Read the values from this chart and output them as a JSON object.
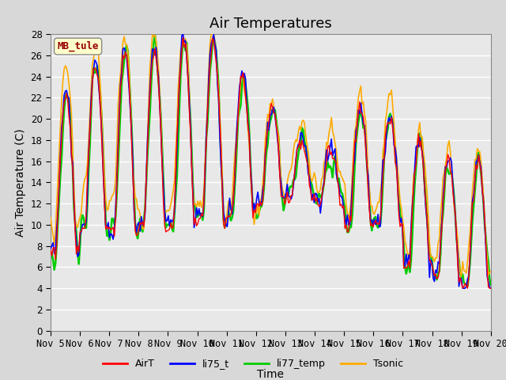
{
  "title": "Air Temperatures",
  "xlabel": "Time",
  "ylabel": "Air Temperature (C)",
  "ylim": [
    0,
    28
  ],
  "yticks": [
    0,
    2,
    4,
    6,
    8,
    10,
    12,
    14,
    16,
    18,
    20,
    22,
    24,
    26,
    28
  ],
  "xtick_labels": [
    "Nov 5",
    "Nov 6",
    "Nov 7",
    "Nov 8",
    "Nov 9",
    "Nov 10",
    "Nov 11",
    "Nov 12",
    "Nov 13",
    "Nov 14",
    "Nov 15",
    "Nov 16",
    "Nov 17",
    "Nov 18",
    "Nov 19",
    "Nov 20"
  ],
  "annotation_text": "MB_tule",
  "annotation_color": "#990000",
  "annotation_bg": "#ffffcc",
  "line_colors": {
    "AirT": "#ff0000",
    "li75_t": "#0000ff",
    "li77_temp": "#00cc00",
    "Tsonic": "#ffaa00"
  },
  "line_widths": {
    "AirT": 1.0,
    "li75_t": 1.2,
    "li77_temp": 1.8,
    "Tsonic": 1.2
  },
  "bg_color": "#d8d8d8",
  "plot_bg": "#e8e8e8",
  "grid_color": "#ffffff",
  "title_fontsize": 13,
  "axis_fontsize": 10,
  "tick_fontsize": 8.5
}
